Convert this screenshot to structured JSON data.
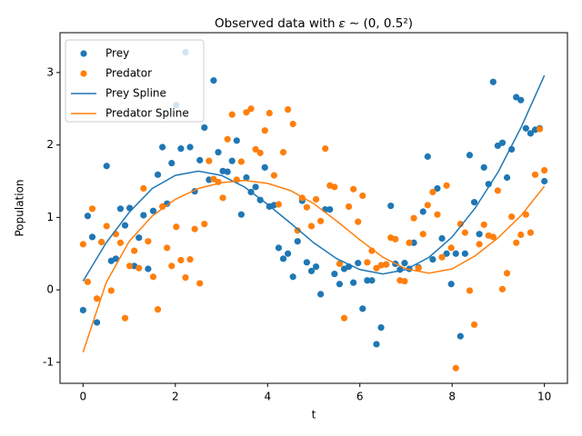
{
  "chart_data": {
    "type": "scatter",
    "title": "Observed data with 𝜀 ∼ (0, 0.5²)",
    "x_label": "t",
    "y_label": "Population",
    "xlim": [
      -0.5,
      10.5
    ],
    "ylim": [
      -1.29,
      3.55
    ],
    "xticks": [
      0,
      2,
      4,
      6,
      8,
      10
    ],
    "yticks": [
      -1,
      0,
      1,
      2,
      3
    ],
    "grid": false,
    "legend": "upper left",
    "x": [
      0,
      0.1,
      0.2,
      0.3,
      0.4,
      0.51,
      0.61,
      0.71,
      0.81,
      0.91,
      1.01,
      1.11,
      1.21,
      1.31,
      1.41,
      1.52,
      1.62,
      1.72,
      1.82,
      1.92,
      2.02,
      2.12,
      2.22,
      2.32,
      2.42,
      2.53,
      2.63,
      2.73,
      2.83,
      2.93,
      3.03,
      3.13,
      3.23,
      3.33,
      3.43,
      3.54,
      3.64,
      3.74,
      3.84,
      3.94,
      4.04,
      4.14,
      4.24,
      4.34,
      4.44,
      4.55,
      4.65,
      4.75,
      4.85,
      4.95,
      5.05,
      5.15,
      5.25,
      5.35,
      5.45,
      5.56,
      5.66,
      5.76,
      5.86,
      5.96,
      6.06,
      6.16,
      6.26,
      6.36,
      6.46,
      6.57,
      6.67,
      6.77,
      6.87,
      6.97,
      7.07,
      7.17,
      7.27,
      7.37,
      7.47,
      7.58,
      7.68,
      7.78,
      7.88,
      7.98,
      8.08,
      8.18,
      8.28,
      8.38,
      8.48,
      8.59,
      8.69,
      8.79,
      8.89,
      8.99,
      9.09,
      9.19,
      9.29,
      9.39,
      9.49,
      9.6,
      9.7,
      9.8,
      9.9,
      10
    ],
    "series": [
      {
        "name": "Prey",
        "type": "scatter",
        "color": "#1f77b4",
        "values": [
          -0.28,
          1.02,
          0.73,
          -0.45,
          0.66,
          1.71,
          0.4,
          0.43,
          1.12,
          0.89,
          1.13,
          0.33,
          0.72,
          1.03,
          0.29,
          1.09,
          1.59,
          1.97,
          1.19,
          1.75,
          2.55,
          1.95,
          3.28,
          1.97,
          1.36,
          1.79,
          2.24,
          1.52,
          2.89,
          1.9,
          1.64,
          1.63,
          1.78,
          2.06,
          1.04,
          1.55,
          1.35,
          1.42,
          1.24,
          1.69,
          1.15,
          1.17,
          0.58,
          0.43,
          0.5,
          0.18,
          0.67,
          1.23,
          0.38,
          0.26,
          0.32,
          -0.06,
          1.11,
          1.11,
          0.22,
          0.08,
          0.29,
          0.32,
          0.1,
          0.37,
          -0.26,
          0.13,
          0.13,
          -0.75,
          -0.52,
          0.35,
          1.16,
          0.36,
          0.28,
          0.37,
          0.29,
          0.65,
          0.31,
          1.08,
          1.84,
          0.42,
          1.4,
          0.71,
          0.5,
          0.08,
          0.5,
          -0.64,
          0.5,
          1.86,
          1.21,
          0.77,
          1.69,
          1.46,
          2.87,
          1.99,
          2.03,
          1.55,
          1.94,
          2.66,
          2.62,
          2.23,
          2.16,
          2.21,
          2.23,
          1.5
        ]
      },
      {
        "name": "Predator",
        "type": "scatter",
        "color": "#ff7f0e",
        "values": [
          0.63,
          0.11,
          1.12,
          -0.12,
          0.66,
          0.88,
          -0.01,
          0.77,
          0.65,
          -0.39,
          0.33,
          0.54,
          0.3,
          1.4,
          0.67,
          0.18,
          -0.27,
          1.15,
          0.58,
          0.33,
          0.87,
          0.41,
          0.17,
          0.42,
          0.84,
          0.09,
          0.91,
          1.78,
          1.53,
          1.49,
          1.27,
          2.08,
          2.42,
          1.52,
          1.77,
          2.45,
          2.5,
          1.94,
          1.89,
          2.2,
          2.44,
          1.58,
          1.18,
          1.9,
          2.49,
          2.29,
          0.82,
          1.27,
          1.14,
          0.88,
          1.25,
          0.95,
          1.95,
          1.44,
          1.42,
          0.36,
          -0.39,
          1.15,
          1.39,
          0.94,
          1.3,
          0.38,
          0.54,
          0.3,
          0.34,
          0.35,
          0.72,
          0.7,
          0.13,
          0.12,
          0.65,
          0.99,
          0.3,
          0.77,
          1.17,
          1.35,
          1.04,
          0.45,
          1.44,
          0.58,
          -1.08,
          0.91,
          0.79,
          -0.01,
          -0.48,
          0.63,
          0.9,
          0.75,
          0.73,
          1.37,
          0.01,
          0.23,
          1.01,
          0.65,
          0.76,
          1.04,
          0.79,
          1.59,
          2.22,
          1.65
        ]
      },
      {
        "name": "Prey Spline",
        "type": "line",
        "color": "#1f77b4",
        "x": [
          0,
          0.5,
          1,
          1.5,
          2,
          2.5,
          3,
          3.5,
          4,
          4.5,
          5,
          5.5,
          6,
          6.5,
          7,
          7.5,
          8,
          8.5,
          9,
          9.5,
          10
        ],
        "values": [
          0.12,
          0.65,
          1.07,
          1.4,
          1.58,
          1.64,
          1.58,
          1.42,
          1.18,
          0.92,
          0.65,
          0.43,
          0.28,
          0.22,
          0.28,
          0.45,
          0.73,
          1.13,
          1.63,
          2.25,
          2.96
        ]
      },
      {
        "name": "Predator Spline",
        "type": "line",
        "color": "#ff7f0e",
        "x": [
          0,
          0.5,
          1,
          1.5,
          2,
          2.5,
          3,
          3.5,
          4,
          4.5,
          5,
          5.5,
          6,
          6.5,
          7,
          7.5,
          8,
          8.5,
          9,
          9.5,
          10
        ],
        "values": [
          -0.86,
          0.1,
          0.67,
          1.02,
          1.25,
          1.4,
          1.48,
          1.51,
          1.47,
          1.37,
          1.19,
          0.95,
          0.69,
          0.45,
          0.29,
          0.23,
          0.29,
          0.47,
          0.72,
          1.03,
          1.43
        ]
      }
    ]
  }
}
